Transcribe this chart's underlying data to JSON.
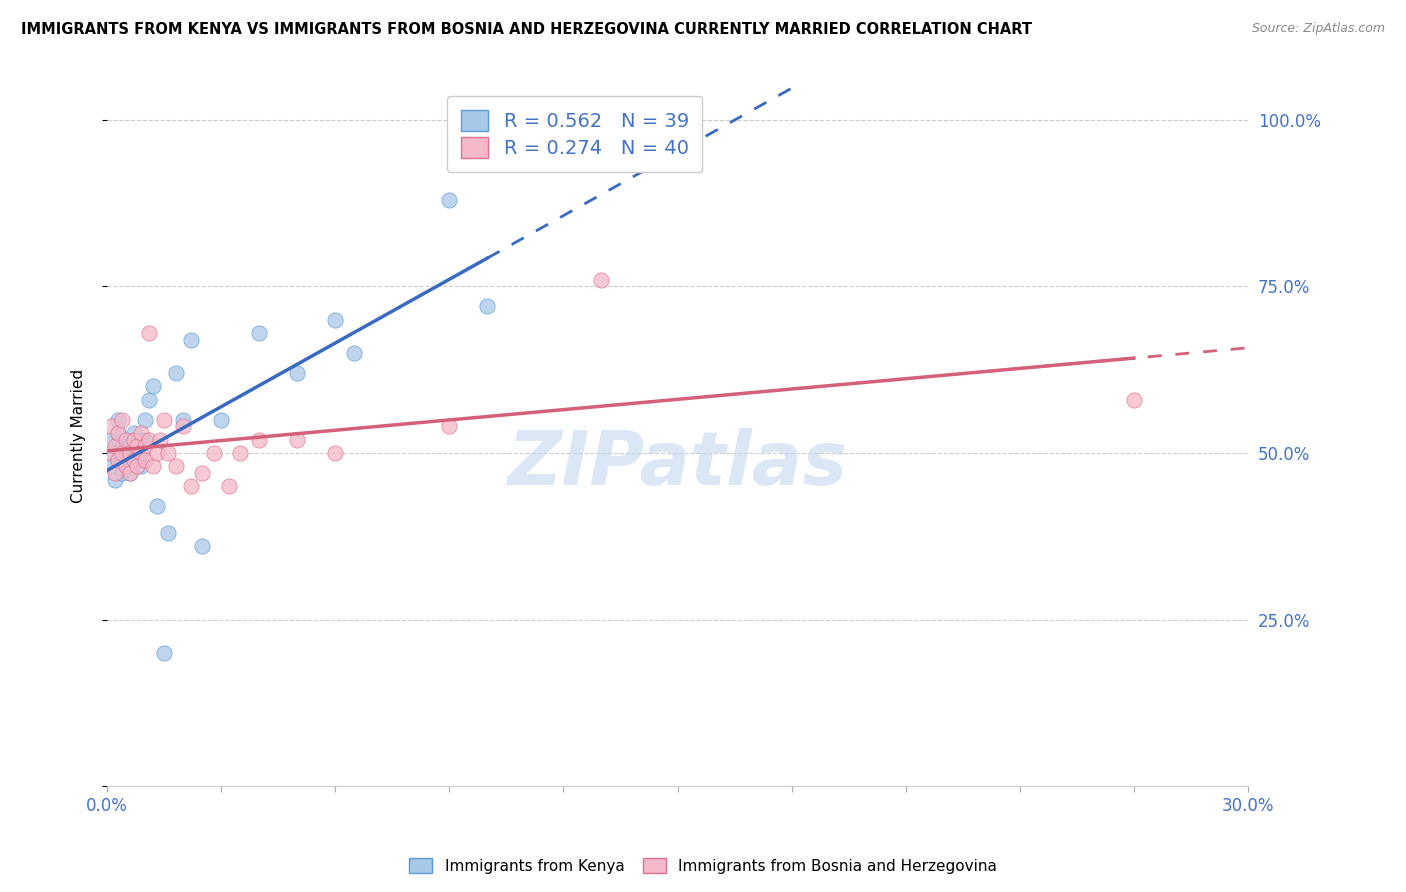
{
  "title": "IMMIGRANTS FROM KENYA VS IMMIGRANTS FROM BOSNIA AND HERZEGOVINA CURRENTLY MARRIED CORRELATION CHART",
  "source": "Source: ZipAtlas.com",
  "legend_kenya": "Immigrants from Kenya",
  "legend_bosnia": "Immigrants from Bosnia and Herzegovina",
  "R_kenya": 0.562,
  "N_kenya": 39,
  "R_bosnia": 0.274,
  "N_bosnia": 40,
  "color_kenya_fill": "#a8c8e8",
  "color_kenya_edge": "#5b9bd5",
  "color_bosnia_fill": "#f4b8c8",
  "color_bosnia_edge": "#e07090",
  "color_blue": "#4472c4",
  "trend_kenya_color": "#3a6abf",
  "trend_bosnia_color": "#d4607a",
  "watermark_color": "#c5d8ef",
  "kenya_x": [
    0.001,
    0.001,
    0.002,
    0.002,
    0.003,
    0.003,
    0.003,
    0.004,
    0.004,
    0.005,
    0.005,
    0.005,
    0.006,
    0.006,
    0.006,
    0.007,
    0.007,
    0.008,
    0.008,
    0.009,
    0.009,
    0.01,
    0.01,
    0.011,
    0.012,
    0.013,
    0.015,
    0.016,
    0.018,
    0.02,
    0.022,
    0.025,
    0.03,
    0.04,
    0.05,
    0.06,
    0.065,
    0.09,
    0.1
  ],
  "kenya_y": [
    0.48,
    0.52,
    0.46,
    0.5,
    0.49,
    0.53,
    0.55,
    0.47,
    0.51,
    0.5,
    0.48,
    0.52,
    0.49,
    0.51,
    0.47,
    0.5,
    0.53,
    0.49,
    0.51,
    0.5,
    0.48,
    0.52,
    0.55,
    0.58,
    0.6,
    0.42,
    0.2,
    0.38,
    0.62,
    0.55,
    0.67,
    0.36,
    0.55,
    0.68,
    0.62,
    0.7,
    0.65,
    0.88,
    0.72
  ],
  "bosnia_x": [
    0.001,
    0.001,
    0.002,
    0.002,
    0.003,
    0.003,
    0.004,
    0.004,
    0.005,
    0.005,
    0.006,
    0.006,
    0.007,
    0.007,
    0.008,
    0.008,
    0.009,
    0.009,
    0.01,
    0.01,
    0.011,
    0.011,
    0.012,
    0.013,
    0.014,
    0.015,
    0.016,
    0.018,
    0.02,
    0.022,
    0.025,
    0.028,
    0.032,
    0.035,
    0.04,
    0.05,
    0.06,
    0.09,
    0.13,
    0.27
  ],
  "bosnia_y": [
    0.5,
    0.54,
    0.47,
    0.51,
    0.49,
    0.53,
    0.5,
    0.55,
    0.48,
    0.52,
    0.5,
    0.47,
    0.52,
    0.49,
    0.51,
    0.48,
    0.53,
    0.5,
    0.51,
    0.49,
    0.68,
    0.52,
    0.48,
    0.5,
    0.52,
    0.55,
    0.5,
    0.48,
    0.54,
    0.45,
    0.47,
    0.5,
    0.45,
    0.5,
    0.52,
    0.52,
    0.5,
    0.54,
    0.76,
    0.58
  ],
  "xlim": [
    0.0,
    0.3
  ],
  "ylim": [
    0.0,
    1.05
  ],
  "kenya_trend_x0": 0.0,
  "kenya_trend_x1": 0.1,
  "kenya_trend_dash_x0": 0.1,
  "kenya_trend_dash_x1": 0.3,
  "bosnia_trend_x0": 0.0,
  "bosnia_trend_x1": 0.27,
  "bosnia_trend_dash_x0": 0.23,
  "bosnia_trend_dash_x1": 0.3
}
